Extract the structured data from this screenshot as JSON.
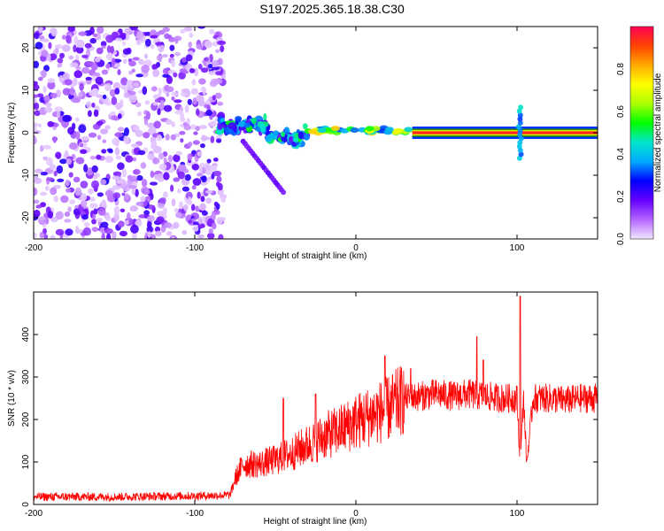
{
  "title": "S197.2025.365.18.38.C30",
  "chart_data": [
    {
      "type": "heatmap",
      "name": "spectrogram",
      "xlabel": "Height of straight line (km)",
      "ylabel": "Frequency (Hz)",
      "xlim": [
        -200,
        150
      ],
      "ylim": [
        -25,
        25
      ],
      "xticks": [
        -200,
        -100,
        0,
        100
      ],
      "yticks": [
        20,
        10,
        0,
        -10,
        -20
      ],
      "colorbar": {
        "label": "Normalized spectral amplitude",
        "range": [
          0,
          1
        ],
        "ticks": [
          "0.0",
          "0.2",
          "0.4",
          "0.6",
          "0.8"
        ],
        "colors": [
          "#f2e6ff",
          "#b366ff",
          "#6600ff",
          "#0000ff",
          "#00aaff",
          "#00e5cc",
          "#00ff00",
          "#aaff00",
          "#ffff00",
          "#ffaa00",
          "#ff4400",
          "#ff0055"
        ]
      },
      "regions": [
        {
          "name": "noise",
          "x_range": [
            -200,
            -82
          ],
          "freq_range": [
            -25,
            25
          ],
          "amplitude_range": [
            0.02,
            0.25
          ]
        },
        {
          "name": "onset-scatter",
          "x_range": [
            -85,
            -30
          ],
          "freq_range": [
            -6,
            6
          ],
          "amplitude_range": [
            0.15,
            0.55
          ]
        },
        {
          "name": "descending-streak",
          "x_start": -70,
          "x_end": -45,
          "freq_start": -2,
          "freq_end": -14,
          "amplitude": 0.15
        },
        {
          "name": "narrow-band-onset",
          "x_range": [
            -30,
            35
          ],
          "freq_center": 0.5,
          "amplitude_range": [
            0.3,
            0.8
          ]
        },
        {
          "name": "narrow-band",
          "x_range": [
            35,
            150
          ],
          "freq_center": 0,
          "amplitude": 0.95
        },
        {
          "name": "burst",
          "x_center": 102,
          "freq_range": [
            -6,
            6
          ],
          "amplitude": 0.3
        }
      ]
    },
    {
      "type": "line",
      "name": "snr",
      "color": "#ff0000",
      "xlabel": "Height of straight line (km)",
      "ylabel": "SNR (10 * v/v)",
      "xlim": [
        -200,
        150
      ],
      "ylim": [
        0,
        500
      ],
      "xticks": [
        -200,
        -100,
        0,
        100
      ],
      "yticks": [
        0,
        100,
        200,
        300,
        400
      ],
      "x": [
        -200,
        -150,
        -100,
        -78,
        -75,
        -70,
        -60,
        -50,
        -40,
        -30,
        -20,
        -10,
        0,
        10,
        20,
        30,
        40,
        50,
        60,
        70,
        80,
        90,
        100,
        102,
        104,
        106,
        110,
        120,
        130,
        140,
        150
      ],
      "y": [
        18,
        18,
        20,
        22,
        60,
        95,
        95,
        105,
        120,
        140,
        160,
        175,
        195,
        210,
        225,
        250,
        255,
        260,
        255,
        260,
        255,
        250,
        250,
        90,
        260,
        95,
        250,
        250,
        245,
        250,
        250
      ],
      "spikes": [
        {
          "x": -45,
          "y": 250
        },
        {
          "x": -25,
          "y": 260
        },
        {
          "x": 18,
          "y": 350
        },
        {
          "x": 34,
          "y": 320
        },
        {
          "x": 75,
          "y": 395
        },
        {
          "x": 79,
          "y": 340
        },
        {
          "x": 102,
          "y": 490
        }
      ]
    }
  ]
}
